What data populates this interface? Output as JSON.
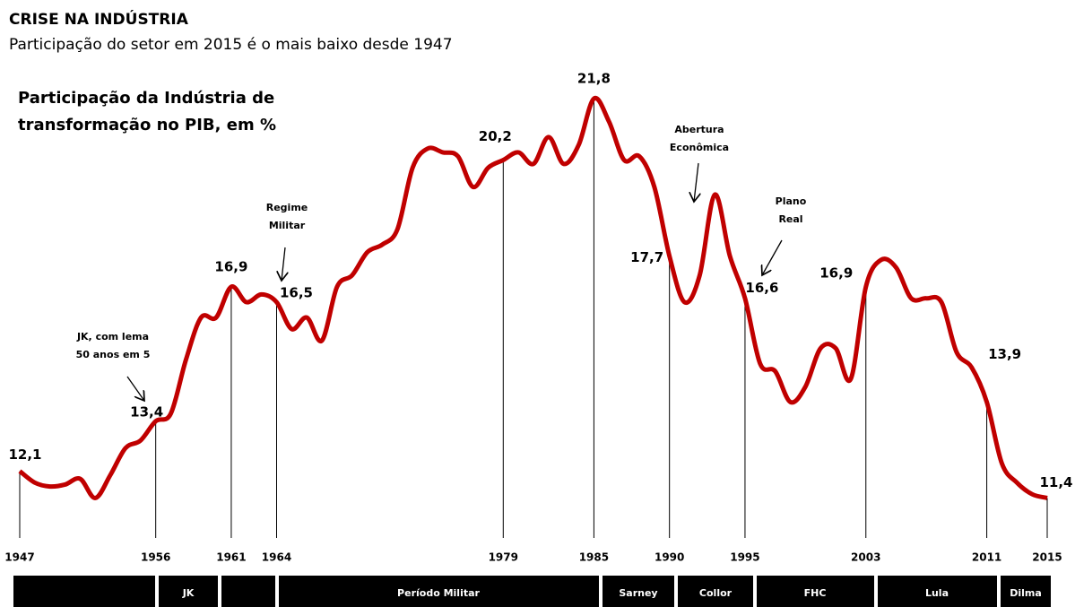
{
  "chart_data": {
    "type": "line",
    "title": "CRISE NA INDÚSTRIA",
    "subtitle": "Participação do setor em 2015 é o mais baixo desde 1947",
    "y_label": [
      "Participação da Indústria de",
      "transformação no PIB, em %"
    ],
    "annotations": [
      [
        "JK, com lema",
        "50 anos em 5"
      ],
      [
        "Regime",
        "Militar"
      ],
      [
        "Abertura",
        "Econômica"
      ],
      [
        "Plano",
        "Real"
      ]
    ],
    "periods": [
      "JK",
      "Período Militar",
      "Sarney",
      "Collor",
      "FHC",
      "Lula",
      "Dilma"
    ],
    "x": [
      1947,
      1948,
      1949,
      1950,
      1951,
      1952,
      1953,
      1954,
      1955,
      1956,
      1957,
      1958,
      1959,
      1960,
      1961,
      1962,
      1963,
      1964,
      1965,
      1966,
      1967,
      1968,
      1969,
      1970,
      1971,
      1972,
      1973,
      1974,
      1975,
      1976,
      1977,
      1978,
      1979,
      1980,
      1981,
      1982,
      1983,
      1984,
      1985,
      1986,
      1987,
      1988,
      1989,
      1990,
      1991,
      1992,
      1993,
      1994,
      1995,
      1996,
      1997,
      1998,
      1999,
      2000,
      2001,
      2002,
      2003,
      2004,
      2005,
      2006,
      2007,
      2008,
      2009,
      2010,
      2011,
      2012,
      2013,
      2014,
      2015
    ],
    "values": [
      12.1,
      11.8,
      11.7,
      11.75,
      11.9,
      11.4,
      12.0,
      12.7,
      12.9,
      13.4,
      13.6,
      15.0,
      16.1,
      16.1,
      16.9,
      16.5,
      16.7,
      16.5,
      15.8,
      16.1,
      15.5,
      16.9,
      17.2,
      17.8,
      18.0,
      18.4,
      20.0,
      20.5,
      20.4,
      20.3,
      19.5,
      20.0,
      20.2,
      20.4,
      20.1,
      20.8,
      20.1,
      20.6,
      21.8,
      21.2,
      20.2,
      20.3,
      19.5,
      17.7,
      16.5,
      17.2,
      19.3,
      17.7,
      16.6,
      14.9,
      14.7,
      13.9,
      14.3,
      15.3,
      15.3,
      14.5,
      16.9,
      17.6,
      17.4,
      16.6,
      16.6,
      16.5,
      15.2,
      14.8,
      13.9,
      12.3,
      11.8,
      11.5,
      11.4
    ],
    "value_labels": [
      "12,1",
      null,
      null,
      null,
      null,
      null,
      null,
      null,
      null,
      "13,4",
      null,
      null,
      null,
      null,
      "16,9",
      null,
      null,
      "16,5",
      null,
      null,
      null,
      null,
      null,
      null,
      null,
      null,
      null,
      null,
      null,
      null,
      null,
      null,
      "20,2",
      null,
      null,
      null,
      null,
      null,
      "21,8",
      null,
      null,
      null,
      null,
      "17,7",
      null,
      null,
      null,
      null,
      "16,6",
      null,
      null,
      null,
      null,
      null,
      null,
      null,
      "16,9",
      null,
      null,
      null,
      null,
      null,
      null,
      null,
      "13,9",
      null,
      null,
      null,
      "11,4"
    ],
    "color": "#c00000",
    "xlim": [
      1947,
      2015
    ],
    "xticks": [
      1947,
      1956,
      1961,
      1964,
      1979,
      1985,
      1990,
      1995,
      2003,
      2011,
      2015
    ],
    "ylim": [
      10.5,
      22.5
    ]
  }
}
